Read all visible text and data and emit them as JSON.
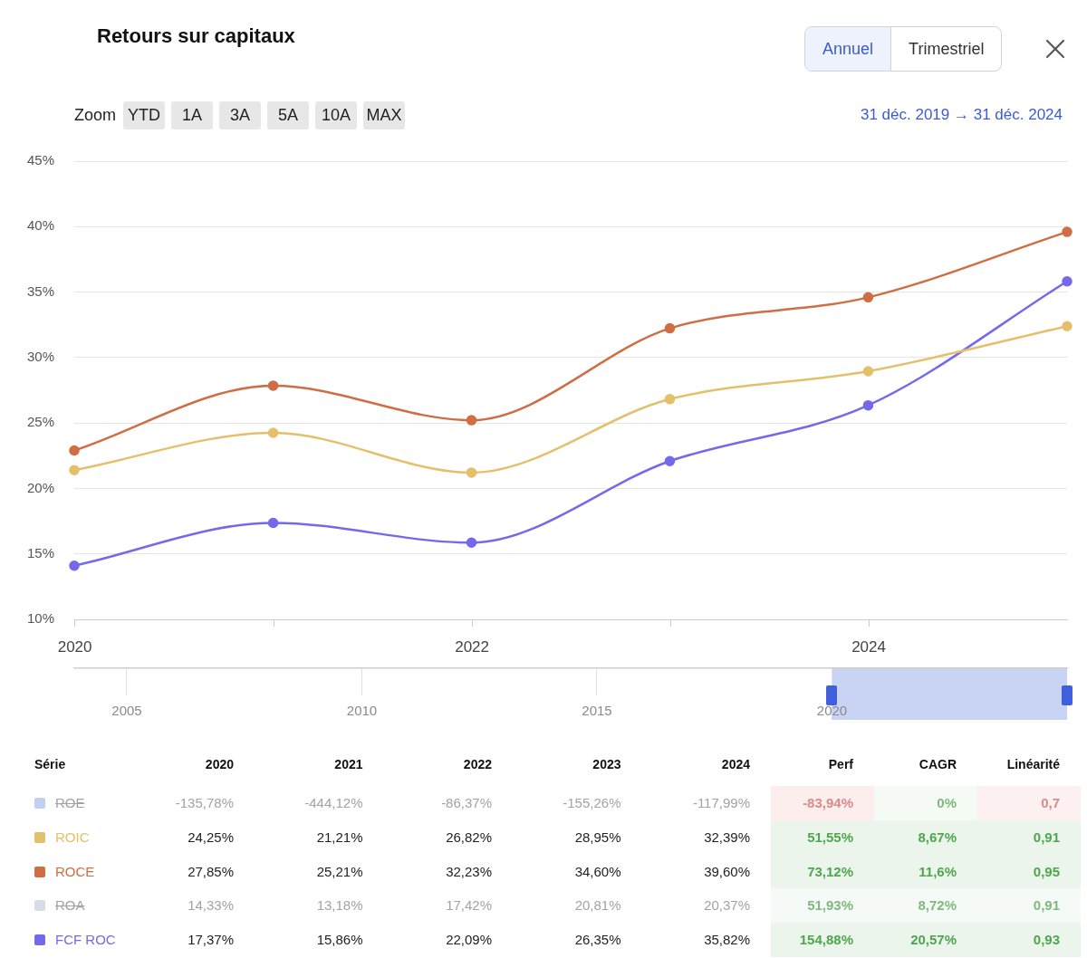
{
  "chart_data": [
    {
      "type": "line",
      "title": "Retours sur capitaux",
      "subtitle": "31 déc. 2019 → 31 déc. 2024",
      "annotations": [
        "Annuel",
        "Trimestriel",
        "Zoom",
        "YTD",
        "1A",
        "3A",
        "5A",
        "10A",
        "MAX"
      ],
      "x": [
        "2019-12-31",
        "2020-12-31",
        "2021-12-31",
        "2022-12-31",
        "2023-12-31",
        "2024-12-31"
      ],
      "xlim": [
        "2019-12-31",
        "2024-12-31"
      ],
      "xticks": [
        "2020",
        {
          "value": "2021",
          "label": null
        },
        "2022",
        {
          "value": "2023",
          "label": null
        },
        "2024"
      ],
      "x2lim": [
        "2003-11-20",
        "2024-12-31"
      ],
      "x2ticks": [
        "2005",
        "2010",
        "2015",
        "2020"
      ],
      "ylim": [
        10,
        45
      ],
      "yticks": [
        {
          "value": 10,
          "label": "10%"
        },
        {
          "value": 15,
          "label": "15%"
        },
        {
          "value": 20,
          "label": "20%"
        },
        {
          "value": 25,
          "label": "25%"
        },
        {
          "value": 30,
          "label": "30%"
        },
        {
          "value": 35,
          "label": "35%"
        },
        {
          "value": 40,
          "label": "40%"
        },
        {
          "value": 45,
          "label": "45%"
        }
      ],
      "grid": "y",
      "marker": "circle",
      "series": [
        {
          "color": "#c3cff2",
          "values": [
            null,
            null,
            null,
            null,
            null,
            null
          ]
        },
        {
          "color": "#e4c06a",
          "values": [
            21.4,
            24.25,
            21.21,
            26.82,
            28.95,
            32.39
          ]
        },
        {
          "color": "#cf6e45",
          "values": [
            22.9,
            27.85,
            25.21,
            32.23,
            34.6,
            39.6
          ]
        },
        {
          "color": "#d9dde6",
          "values": [
            null,
            null,
            null,
            null,
            null,
            null
          ]
        },
        {
          "color": "#7469ea",
          "values": [
            14.1,
            17.37,
            15.86,
            22.09,
            26.35,
            35.82
          ]
        }
      ]
    },
    {
      "type": "heatmap",
      "ylabel": "Série",
      "categories": [
        "2020",
        "2021",
        "2022",
        "2023",
        "2024",
        "Perf",
        "CAGR",
        "Linéarité"
      ],
      "y_categories": [
        "ROE",
        "ROIC",
        "ROCE",
        "ROA",
        "FCF ROC"
      ],
      "cells": [
        [
          -135.78,
          -444.12,
          -86.37,
          -155.26,
          -117.99,
          -83.94,
          0,
          0.7
        ],
        [
          24.25,
          21.21,
          26.82,
          28.95,
          32.39,
          51.55,
          8.67,
          0.91
        ],
        [
          27.85,
          25.21,
          32.23,
          34.6,
          39.6,
          73.12,
          11.6,
          0.95
        ],
        [
          14.33,
          13.18,
          17.42,
          20.81,
          20.37,
          51.93,
          8.72,
          0.91
        ],
        [
          17.37,
          15.86,
          22.09,
          26.35,
          35.82,
          154.88,
          20.57,
          0.93
        ]
      ],
      "cell_labels": [
        [
          "-135,78%",
          "-444,12%",
          "-86,37%",
          "-155,26%",
          "-117,99%",
          "-83,94%",
          "0%",
          "0,7"
        ],
        [
          "24,25%",
          "21,21%",
          "26,82%",
          "28,95%",
          "32,39%",
          "51,55%",
          "8,67%",
          "0,91"
        ],
        [
          "27,85%",
          "25,21%",
          "32,23%",
          "34,60%",
          "39,60%",
          "73,12%",
          "11,6%",
          "0,95"
        ],
        [
          "14,33%",
          "13,18%",
          "17,42%",
          "20,81%",
          "20,37%",
          "51,93%",
          "8,72%",
          "0,91"
        ],
        [
          "17,37%",
          "15,86%",
          "22,09%",
          "26,35%",
          "35,82%",
          "154,88%",
          "20,57%",
          "0,93"
        ]
      ],
      "colors": [
        [
          null,
          null,
          null,
          null,
          null,
          "#fdeeee",
          "#f5faf5",
          "#fdf0f0"
        ],
        [
          null,
          null,
          null,
          null,
          null,
          "#ebf5eb",
          "#ebf5eb",
          "#ebf5eb"
        ],
        [
          null,
          null,
          null,
          null,
          null,
          "#ebf5eb",
          "#ebf5eb",
          "#ebf5eb"
        ],
        [
          null,
          null,
          null,
          null,
          null,
          "#f6faf6",
          "#f6faf6",
          "#f6faf6"
        ],
        [
          null,
          null,
          null,
          null,
          null,
          "#ebf5eb",
          "#ebf5eb",
          "#ebf5eb"
        ]
      ]
    }
  ]
}
